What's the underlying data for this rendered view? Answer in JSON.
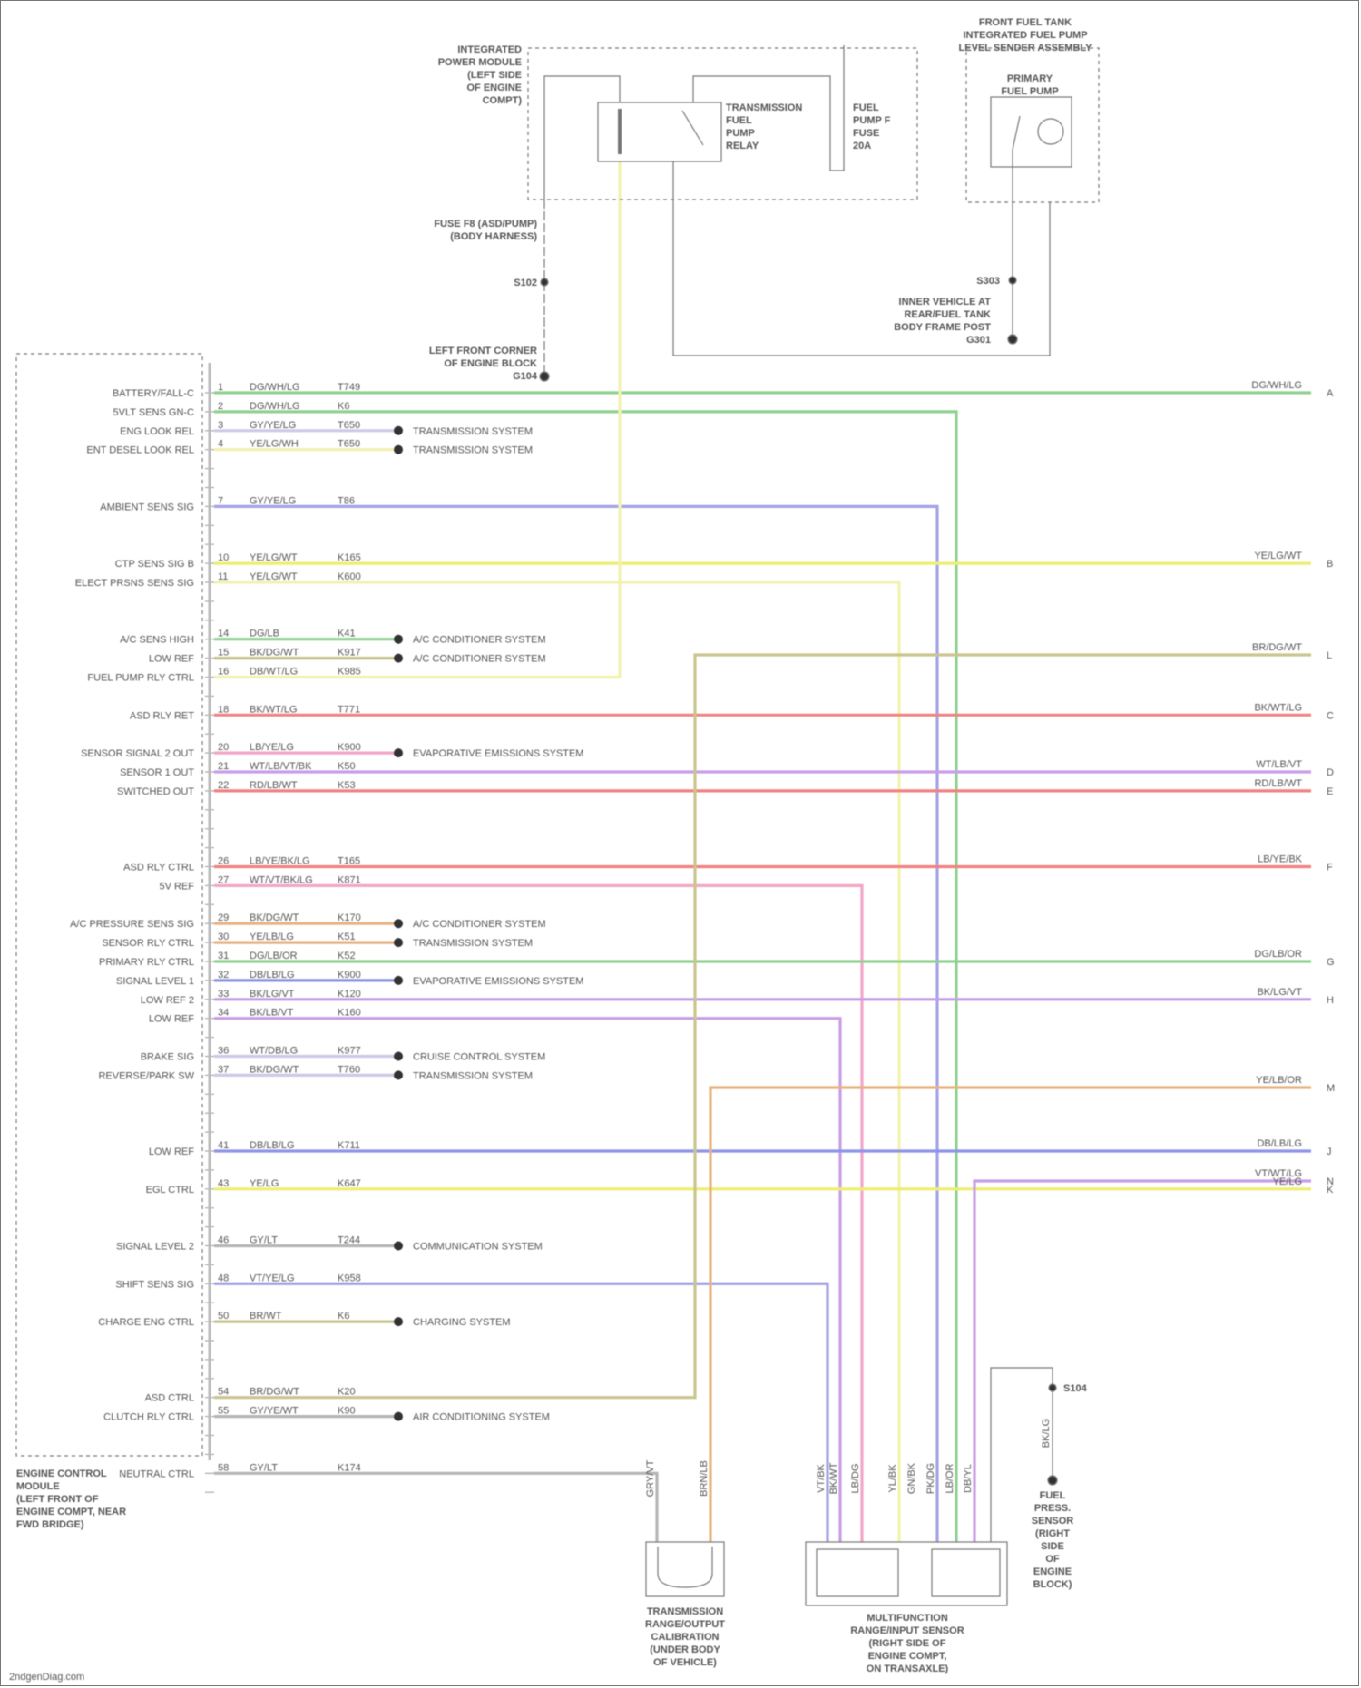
{
  "diagram": {
    "footer": "2ndgenDiag.com",
    "modules": {
      "pcm": [
        "ENGINE CONTROL",
        "MODULE",
        "(LEFT FRONT OF",
        "ENGINE COMPT, NEAR",
        "FWD BRIDGE)"
      ],
      "fuse_block": [
        "INTEGRATED",
        "POWER MODULE",
        "(LEFT SIDE",
        "OF ENGINE",
        "COMPT)"
      ],
      "fuse_ref": [
        "FUSE F8 (ASD/PUMP)",
        "(BODY HARNESS)"
      ],
      "relay": [
        "TRANSMISSION",
        "FUEL",
        "PUMP",
        "RELAY"
      ],
      "relay_fuse": [
        "FUEL",
        "PUMP F",
        "FUSE",
        "20A"
      ],
      "pump_module": [
        "FRONT FUEL TANK",
        "INTEGRATED FUEL PUMP",
        "LEVEL SENDER ASSEMBLY"
      ],
      "pump": [
        "PRIMARY",
        "FUEL PUMP"
      ],
      "ground_left": [
        "LEFT FRONT CORNER",
        "OF ENGINE BLOCK",
        "G104"
      ],
      "ground_right": [
        "INNER VEHICLE AT",
        "REAR/FUEL TANK",
        "BODY FRAME POST",
        "G301"
      ],
      "splice_left": "S102",
      "splice_right": "S303",
      "sensor_left": [
        "TRANSMISSION",
        "RANGE/OUTPUT",
        "CALIBRATION",
        "(UNDER BODY",
        "OF VEHICLE)"
      ],
      "sensor_mid": [
        "MULTIFUNCTION",
        "RANGE/INPUT SENSOR",
        "(RIGHT SIDE OF",
        "ENGINE COMPT,",
        "ON TRANSAXLE)"
      ],
      "switch_right": [
        "FUEL",
        "PRESS.",
        "SENSOR",
        "(RIGHT",
        "SIDE",
        "OF",
        "ENGINE",
        "BLOCK)"
      ],
      "switch_splice": "S104",
      "bottom_wire_labels": [
        "GRY/VT",
        "BRN/LB",
        "VT/BK",
        "BK/WT",
        "LB/DG",
        "YL/BK",
        "GN/BK",
        "PK/DG",
        "LB/OR",
        "DB/YL",
        "BK/LG"
      ]
    },
    "colors": {
      "green": "#8fd18f",
      "yellow": "#eeee70",
      "purple": "#a3a3e6",
      "red": "#f08282",
      "pink": "#f2a6c8",
      "orange": "#e8b27e",
      "olive": "#c9c48e",
      "lilac": "#c79ee6",
      "blue": "#8c94e6",
      "gray": "#b5b5b5",
      "paleyellow": "#f3f1b0",
      "lightpurple": "#cfc8e8"
    },
    "rows": [
      {
        "pin": "1",
        "label": "BATTERY/FALL-C",
        "wire": "DG/WH/LG",
        "circuit": "T749",
        "color": "green",
        "route": "edge",
        "right": "DG/WH/LG",
        "letter": "A"
      },
      {
        "pin": "2",
        "label": "5VLT SENS GN-C",
        "wire": "DG/WH/LG",
        "circuit": "K6",
        "color": "green",
        "route": "drop1"
      },
      {
        "pin": "3",
        "label": "ENG LOOK REL",
        "wire": "GY/YE/LG",
        "circuit": "T650",
        "color": "lightpurple",
        "route": "dot",
        "dest": "TRANSMISSION SYSTEM"
      },
      {
        "pin": "4",
        "label": "ENT DESEL LOOK REL",
        "wire": "YE/LG/WH",
        "circuit": "T650",
        "color": "paleyellow",
        "route": "dot",
        "dest": "TRANSMISSION SYSTEM"
      },
      {
        "pin": "7",
        "label": "AMBIENT SENS SIG",
        "wire": "GY/YE/LG",
        "circuit": "T86",
        "color": "purple",
        "route": "drop2"
      },
      {
        "pin": "10",
        "label": "CTP SENS SIG B",
        "wire": "YE/LG/WT",
        "circuit": "K165",
        "color": "yellow",
        "route": "edge",
        "right": "YE/LG/WT",
        "letter": "B"
      },
      {
        "pin": "11",
        "label": "ELECT PRSNS SENS SIG",
        "wire": "YE/LG/WT",
        "circuit": "K600",
        "color": "paleyellow",
        "route": "drop3"
      },
      {
        "pin": "14",
        "label": "A/C SENS HIGH",
        "wire": "DG/LB",
        "circuit": "K41",
        "color": "green",
        "route": "dot",
        "dest": "A/C CONDITIONER SYSTEM"
      },
      {
        "pin": "15",
        "label": "LOW REF",
        "wire": "BK/DG/WT",
        "circuit": "K917",
        "color": "olive",
        "route": "dot",
        "dest": "A/C CONDITIONER SYSTEM"
      },
      {
        "pin": "16",
        "label": "FUEL PUMP RLY CTRL",
        "wire": "DB/WT/LG",
        "circuit": "K985",
        "color": "paleyellow",
        "route": "relay"
      },
      {
        "pin": "18",
        "label": "ASD RLY RET",
        "wire": "BK/WT/LG",
        "circuit": "T771",
        "color": "red",
        "route": "edge",
        "right": "BK/WT/LG",
        "letter": "C"
      },
      {
        "pin": "20",
        "label": "SENSOR SIGNAL 2 OUT",
        "wire": "LB/YE/LG",
        "circuit": "K900",
        "color": "pink",
        "route": "dot",
        "dest": "EVAPORATIVE EMISSIONS SYSTEM"
      },
      {
        "pin": "21",
        "label": "SENSOR 1 OUT",
        "wire": "WT/LB/VT/BK",
        "circuit": "K50",
        "color": "lilac",
        "route": "edge",
        "right": "WT/LB/VT",
        "letter": "D"
      },
      {
        "pin": "22",
        "label": "SWITCHED OUT",
        "wire": "RD/LB/WT",
        "circuit": "K53",
        "color": "red",
        "route": "edge",
        "right": "RD/LB/WT",
        "letter": "E"
      },
      {
        "pin": "26",
        "label": "ASD RLY CTRL",
        "wire": "LB/YE/BK/LG",
        "circuit": "T165",
        "color": "red",
        "route": "edge",
        "right": "LB/YE/BK",
        "letter": "F"
      },
      {
        "pin": "27",
        "label": "5V REF",
        "wire": "WT/VT/BK/LG",
        "circuit": "K871",
        "color": "pink",
        "route": "drop4"
      },
      {
        "pin": "29",
        "label": "A/C PRESSURE SENS SIG",
        "wire": "BK/DG/WT",
        "circuit": "K170",
        "color": "orange",
        "route": "dot",
        "dest": "A/C CONDITIONER SYSTEM"
      },
      {
        "pin": "30",
        "label": "SENSOR RLY CTRL",
        "wire": "YE/LB/LG",
        "circuit": "K51",
        "color": "orange",
        "route": "dot",
        "dest": "TRANSMISSION SYSTEM"
      },
      {
        "pin": "31",
        "label": "PRIMARY RLY CTRL",
        "wire": "DG/LB/OR",
        "circuit": "K52",
        "color": "green",
        "route": "edge",
        "right": "DG/LB/OR",
        "letter": "G"
      },
      {
        "pin": "32",
        "label": "SIGNAL LEVEL 1",
        "wire": "DB/LB/LG",
        "circuit": "K900",
        "color": "blue",
        "route": "dot",
        "dest": "EVAPORATIVE EMISSIONS SYSTEM"
      },
      {
        "pin": "33",
        "label": "LOW REF 2",
        "wire": "BK/LG/VT",
        "circuit": "K120",
        "color": "lilac",
        "route": "edge",
        "right": "BK/LG/VT",
        "letter": "H"
      },
      {
        "pin": "34",
        "label": "LOW REF",
        "wire": "BK/LB/VT",
        "circuit": "K160",
        "color": "lilac",
        "route": "drop5"
      },
      {
        "pin": "36",
        "label": "BRAKE SIG",
        "wire": "WT/DB/LG",
        "circuit": "K977",
        "color": "lightpurple",
        "route": "dot",
        "dest": "CRUISE CONTROL SYSTEM"
      },
      {
        "pin": "37",
        "label": "REVERSE/PARK SW",
        "wire": "BK/DG/WT",
        "circuit": "T760",
        "color": "lightpurple",
        "route": "dot",
        "dest": "TRANSMISSION SYSTEM"
      },
      {
        "pin": "41",
        "label": "LOW REF",
        "wire": "DB/LB/LG",
        "circuit": "K711",
        "color": "blue",
        "route": "edge",
        "right": "DB/LB/LG",
        "letter": "J"
      },
      {
        "pin": "43",
        "label": "EGL CTRL",
        "wire": "YE/LG",
        "circuit": "K647",
        "color": "yellow",
        "route": "edge",
        "right": "YE/LG",
        "letter": "K"
      },
      {
        "pin": "46",
        "label": "SIGNAL LEVEL 2",
        "wire": "GY/LT",
        "circuit": "T244",
        "color": "gray",
        "route": "dot",
        "dest": "COMMUNICATION SYSTEM"
      },
      {
        "pin": "48",
        "label": "SHIFT SENS SIG",
        "wire": "VT/YE/LG",
        "circuit": "K958",
        "color": "purple",
        "route": "drop6"
      },
      {
        "pin": "50",
        "label": "CHARGE ENG CTRL",
        "wire": "BR/WT",
        "circuit": "K6",
        "color": "olive",
        "route": "dot",
        "dest": "CHARGING SYSTEM"
      },
      {
        "pin": "54",
        "label": "ASD CTRL",
        "wire": "BR/DG/WT",
        "circuit": "K20",
        "color": "olive",
        "route": "up1"
      },
      {
        "pin": "55",
        "label": "CLUTCH RLY CTRL",
        "wire": "GY/YE/WT",
        "circuit": "K90",
        "color": "gray",
        "route": "dot",
        "dest": "AIR CONDITIONING SYSTEM"
      },
      {
        "pin": "58",
        "label": "NEUTRAL CTRL",
        "wire": "GY/LT",
        "circuit": "K174",
        "color": "gray",
        "route": "drop7"
      }
    ],
    "extras": [
      {
        "name": "olive-feed-wire",
        "color": "olive",
        "right": "BR/DG/WT",
        "letter": "L"
      },
      {
        "name": "orange-feed-wire",
        "color": "orange",
        "right": "YE/LB/OR",
        "letter": "M"
      },
      {
        "name": "lilac-feed-wire",
        "color": "lilac",
        "right": "VT/WT/LG",
        "letter": "N"
      }
    ]
  }
}
